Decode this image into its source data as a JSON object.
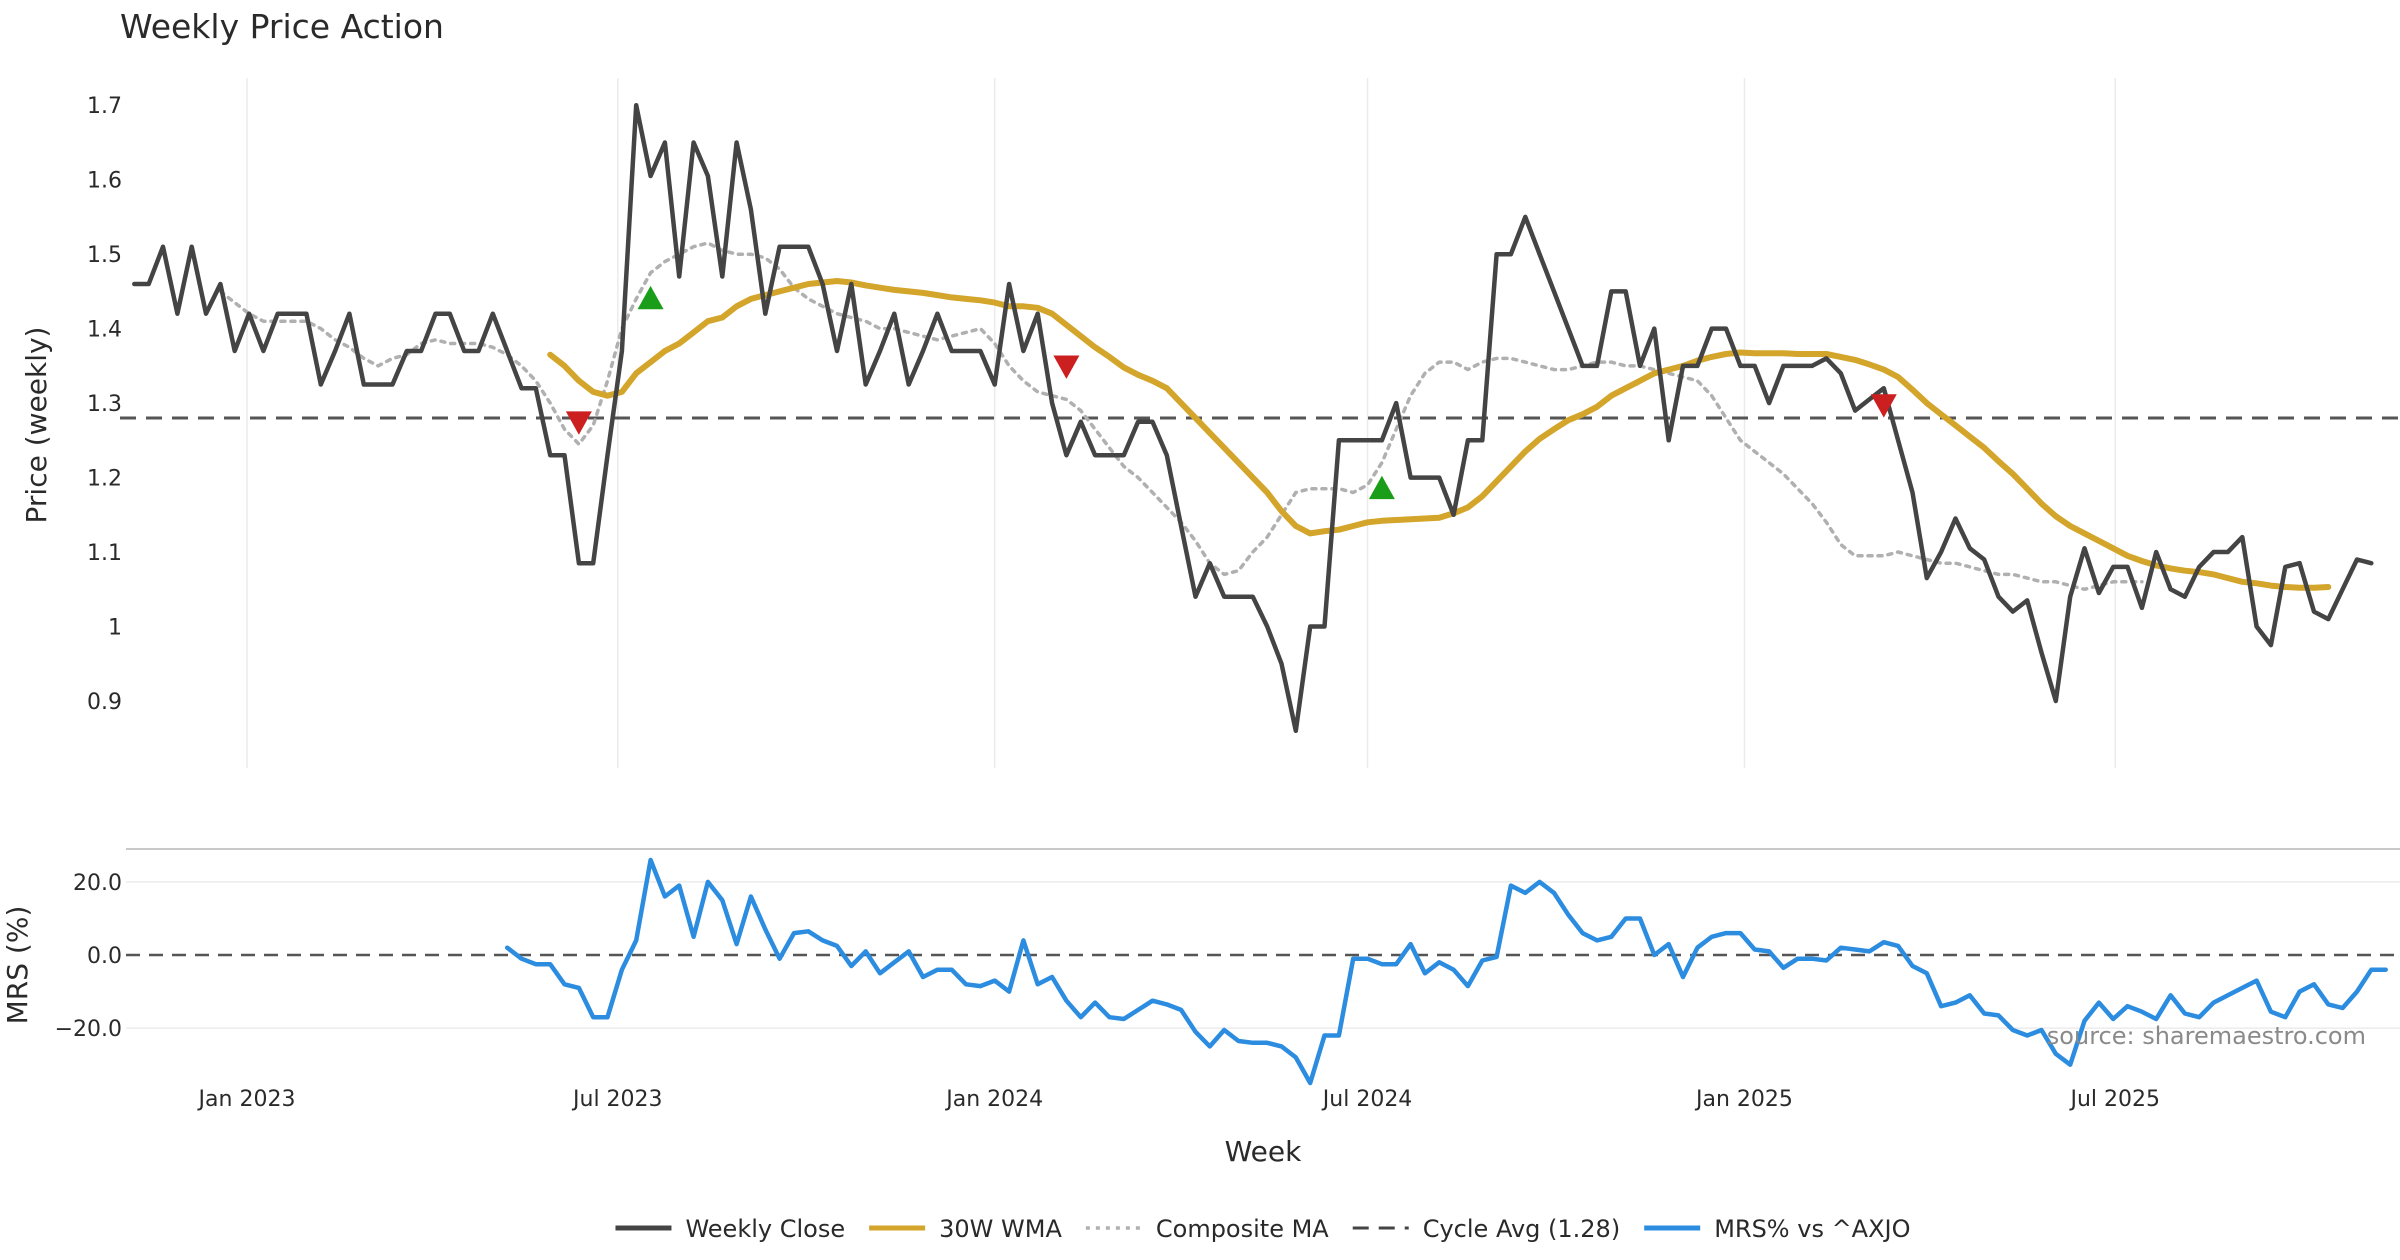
{
  "chart_data": {
    "type": "line",
    "title": "Weekly Price Action",
    "xlabel": "Week",
    "x_ticks": [
      "Jan 2023",
      "Jul 2023",
      "Jan 2024",
      "Jul 2024",
      "Jan 2025",
      "Jul 2025"
    ],
    "x_start": "2022-11-07",
    "x_range": [
      "2022-10-31",
      "2025-11-17"
    ],
    "price_panel": {
      "ylabel": "Price (weekly)",
      "ylim": [
        0.81,
        1.75
      ],
      "y_ticks": [
        0.9,
        1,
        1.1,
        1.2,
        1.3,
        1.4,
        1.5,
        1.6,
        1.7
      ],
      "y_tick_labels": [
        "0.9",
        "1",
        "1.1",
        "1.2",
        "1.3",
        "1.4",
        "1.5",
        "1.6",
        "1.7"
      ],
      "cycle_avg": 1.28,
      "series": [
        {
          "name": "Weekly Close",
          "color": "#444444",
          "style": "solid",
          "start_week": 0,
          "values": [
            1.46,
            1.46,
            1.51,
            1.42,
            1.51,
            1.42,
            1.46,
            1.37,
            1.42,
            1.37,
            1.42,
            1.42,
            1.42,
            1.325,
            1.37,
            1.42,
            1.325,
            1.325,
            1.325,
            1.37,
            1.37,
            1.42,
            1.42,
            1.37,
            1.37,
            1.42,
            1.37,
            1.32,
            1.32,
            1.23,
            1.23,
            1.085,
            1.085,
            1.23,
            1.37,
            1.7,
            1.605,
            1.65,
            1.47,
            1.65,
            1.605,
            1.47,
            1.65,
            1.56,
            1.42,
            1.51,
            1.51,
            1.51,
            1.46,
            1.37,
            1.46,
            1.325,
            1.37,
            1.42,
            1.325,
            1.37,
            1.42,
            1.37,
            1.37,
            1.37,
            1.325,
            1.46,
            1.37,
            1.42,
            1.3,
            1.23,
            1.275,
            1.23,
            1.23,
            1.23,
            1.275,
            1.275,
            1.23,
            1.135,
            1.04,
            1.085,
            1.04,
            1.04,
            1.04,
            1.0,
            0.95,
            0.86,
            1.0,
            1.0,
            1.25,
            1.25,
            1.25,
            1.25,
            1.3,
            1.2,
            1.2,
            1.2,
            1.15,
            1.25,
            1.25,
            1.5,
            1.5,
            1.55,
            1.5,
            1.45,
            1.4,
            1.35,
            1.35,
            1.45,
            1.45,
            1.35,
            1.4,
            1.25,
            1.35,
            1.35,
            1.4,
            1.4,
            1.35,
            1.35,
            1.3,
            1.35,
            1.35,
            1.35,
            1.36,
            1.34,
            1.29,
            1.305,
            1.32,
            1.25,
            1.18,
            1.065,
            1.1,
            1.145,
            1.105,
            1.09,
            1.04,
            1.02,
            1.035,
            0.965,
            0.9,
            1.04,
            1.105,
            1.045,
            1.08,
            1.08,
            1.025,
            1.1,
            1.05,
            1.04,
            1.08,
            1.1,
            1.1,
            1.12,
            1.0,
            0.975,
            1.08,
            1.085,
            1.02,
            1.01,
            1.05,
            1.09,
            1.085
          ]
        },
        {
          "name": "30W WMA",
          "color": "#d4a52b",
          "style": "solid",
          "start_week": 29,
          "values": [
            1.365,
            1.35,
            1.33,
            1.315,
            1.31,
            1.315,
            1.34,
            1.355,
            1.37,
            1.38,
            1.395,
            1.41,
            1.415,
            1.43,
            1.44,
            1.445,
            1.45,
            1.455,
            1.46,
            1.462,
            1.464,
            1.462,
            1.458,
            1.455,
            1.452,
            1.45,
            1.448,
            1.445,
            1.442,
            1.44,
            1.438,
            1.435,
            1.43,
            1.43,
            1.428,
            1.42,
            1.405,
            1.39,
            1.375,
            1.362,
            1.348,
            1.338,
            1.33,
            1.32,
            1.3,
            1.28,
            1.26,
            1.24,
            1.22,
            1.2,
            1.18,
            1.155,
            1.135,
            1.125,
            1.128,
            1.13,
            1.135,
            1.14,
            1.142,
            1.143,
            1.144,
            1.145,
            1.146,
            1.152,
            1.16,
            1.175,
            1.195,
            1.215,
            1.235,
            1.252,
            1.265,
            1.277,
            1.285,
            1.295,
            1.31,
            1.32,
            1.33,
            1.34,
            1.345,
            1.35,
            1.357,
            1.362,
            1.366,
            1.368,
            1.367,
            1.367,
            1.367,
            1.366,
            1.366,
            1.366,
            1.362,
            1.358,
            1.352,
            1.345,
            1.335,
            1.318,
            1.3,
            1.285,
            1.27,
            1.255,
            1.24,
            1.222,
            1.205,
            1.185,
            1.165,
            1.148,
            1.135,
            1.125,
            1.115,
            1.105,
            1.095,
            1.088,
            1.082,
            1.078,
            1.075,
            1.073,
            1.07,
            1.065,
            1.06,
            1.058,
            1.055,
            1.053,
            1.052,
            1.052,
            1.053
          ]
        },
        {
          "name": "Composite MA",
          "color": "#b0b0b0",
          "style": "dotted",
          "start_week": 6,
          "values": [
            1.45,
            1.435,
            1.42,
            1.41,
            1.41,
            1.41,
            1.41,
            1.4,
            1.385,
            1.375,
            1.36,
            1.35,
            1.36,
            1.365,
            1.38,
            1.385,
            1.38,
            1.38,
            1.38,
            1.375,
            1.365,
            1.35,
            1.33,
            1.3,
            1.265,
            1.245,
            1.27,
            1.33,
            1.4,
            1.44,
            1.475,
            1.49,
            1.5,
            1.51,
            1.515,
            1.505,
            1.5,
            1.5,
            1.495,
            1.48,
            1.455,
            1.44,
            1.43,
            1.42,
            1.415,
            1.41,
            1.4,
            1.4,
            1.395,
            1.39,
            1.385,
            1.39,
            1.395,
            1.4,
            1.38,
            1.35,
            1.33,
            1.315,
            1.31,
            1.305,
            1.29,
            1.265,
            1.24,
            1.215,
            1.2,
            1.18,
            1.16,
            1.14,
            1.115,
            1.085,
            1.07,
            1.075,
            1.1,
            1.12,
            1.15,
            1.18,
            1.185,
            1.185,
            1.185,
            1.18,
            1.19,
            1.22,
            1.265,
            1.31,
            1.34,
            1.355,
            1.355,
            1.345,
            1.355,
            1.36,
            1.36,
            1.355,
            1.35,
            1.345,
            1.345,
            1.35,
            1.355,
            1.355,
            1.35,
            1.35,
            1.345,
            1.34,
            1.335,
            1.33,
            1.31,
            1.28,
            1.25,
            1.235,
            1.22,
            1.205,
            1.185,
            1.165,
            1.14,
            1.11,
            1.095,
            1.095,
            1.095,
            1.1,
            1.095,
            1.09,
            1.085,
            1.085,
            1.08,
            1.075,
            1.07,
            1.07,
            1.065,
            1.06,
            1.06,
            1.055,
            1.05,
            1.055,
            1.06,
            1.06,
            1.06
          ]
        }
      ],
      "markers": [
        {
          "type": "sell",
          "week": 31,
          "value": 1.275,
          "color": "#cc1f1f"
        },
        {
          "type": "buy",
          "week": 36,
          "value": 1.44,
          "color": "#1a9e1a"
        },
        {
          "type": "sell",
          "week": 65,
          "value": 1.35,
          "color": "#cc1f1f"
        },
        {
          "type": "buy",
          "week": 87,
          "value": 1.185,
          "color": "#1a9e1a"
        },
        {
          "type": "sell",
          "week": 122,
          "value": 1.298,
          "color": "#cc1f1f"
        }
      ]
    },
    "mrs_panel": {
      "ylabel": "MRS (%)",
      "ylim": [
        -35,
        29
      ],
      "y_ticks": [
        20,
        0,
        -20
      ],
      "y_tick_labels": [
        "20.0",
        "0.0",
        "−20.0"
      ],
      "series": [
        {
          "name": "MRS% vs ^AXJO",
          "color": "#2b8ce0",
          "style": "solid",
          "start_week": 26,
          "values": [
            2,
            -1,
            -2.5,
            -2.5,
            -8,
            -9,
            -17,
            -17,
            -4,
            4,
            26,
            16,
            19,
            5,
            20,
            15,
            3,
            16,
            7,
            -1,
            6,
            6.5,
            4,
            2.5,
            -3,
            1,
            -5,
            -2,
            1,
            -6,
            -4,
            -4,
            -8,
            -8.5,
            -7,
            -10,
            4,
            -8,
            -6,
            -12.5,
            -17,
            -13,
            -17,
            -17.5,
            -15,
            -12.5,
            -13.5,
            -15,
            -21,
            -25,
            -20.5,
            -23.5,
            -24,
            -24,
            -25,
            -28,
            -35,
            -22,
            -22,
            -1,
            -1,
            -2.5,
            -2.5,
            3,
            -5,
            -2,
            -4,
            -8.5,
            -1.5,
            -0.5,
            19,
            17,
            20,
            17,
            11,
            6,
            4,
            5,
            10,
            10,
            0,
            3,
            -6,
            2,
            5,
            6,
            6,
            1.5,
            1,
            -3.5,
            -1,
            -1,
            -1.5,
            2,
            1.5,
            1,
            3.5,
            2.5,
            -3,
            -5,
            -14,
            -13,
            -11,
            -16,
            -16.5,
            -20.5,
            -22,
            -20.5,
            -27,
            -30,
            -18,
            -13,
            -17.5,
            -14,
            -15.5,
            -17.5,
            -11,
            -16,
            -17,
            -13,
            -11,
            -9,
            -7,
            -15.5,
            -17,
            -10,
            -8,
            -13.5,
            -14.5,
            -10,
            -4,
            -4
          ]
        }
      ]
    },
    "legend": {
      "placement": "bottom",
      "items": [
        {
          "label": "Weekly Close",
          "color": "#444444",
          "style": "solid"
        },
        {
          "label": "30W WMA",
          "color": "#d4a52b",
          "style": "solid"
        },
        {
          "label": "Composite MA",
          "color": "#b0b0b0",
          "style": "dotted"
        },
        {
          "label": "Cycle Avg (1.28)",
          "color": "#444444",
          "style": "dashed"
        },
        {
          "label": "MRS% vs ^AXJO",
          "color": "#2b8ce0",
          "style": "solid"
        }
      ]
    },
    "annotation": "source: sharemaestro.com",
    "grid": true
  }
}
